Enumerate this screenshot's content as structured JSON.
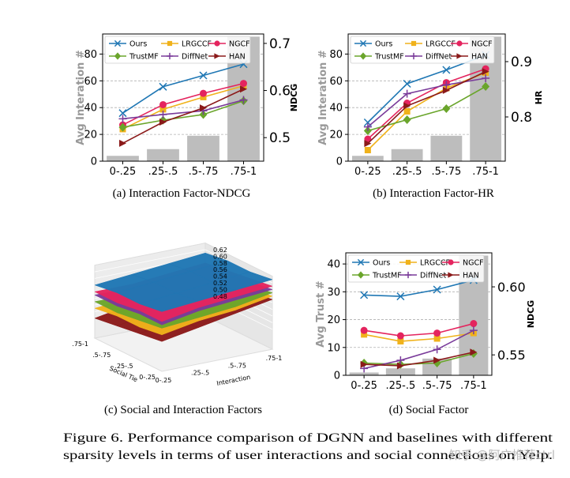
{
  "colors": {
    "Ours": "#1f77b4",
    "LRGCCF": "#f0b21b",
    "NGCF": "#e4245e",
    "TrustMF": "#6aa52b",
    "DiffNet": "#7a3b9a",
    "HAN": "#8b1a1a",
    "bar": "#bdbdbd"
  },
  "markers": {
    "Ours": "x",
    "LRGCCF": "s",
    "NGCF": "o",
    "TrustMF": "d",
    "DiffNet": "+",
    "HAN": ">"
  },
  "legend_order": [
    "Ours",
    "LRGCCF",
    "NGCF",
    "TrustMF",
    "DiffNet",
    "HAN"
  ],
  "chart_data": [
    {
      "id": "a",
      "type": "bar+line",
      "caption": "(a)  Interaction Factor-NDCG",
      "categories": [
        "0-.25",
        ".25-.5",
        ".5-.75",
        ".75-1"
      ],
      "bar_values": [
        4,
        9,
        19,
        93
      ],
      "ylabel_left": "Avg Interation #",
      "ylim_left": [
        0,
        95
      ],
      "yticks_left": [
        "0",
        "20",
        "40",
        "60",
        "80"
      ],
      "yticks_left_values": [
        0,
        20,
        40,
        60,
        80
      ],
      "ylabel_right": "NDCG",
      "ylim_right": [
        0.45,
        0.72
      ],
      "yticks_right": [
        "0.5",
        "0.6",
        "0.7"
      ],
      "yticks_right_values": [
        0.5,
        0.6,
        0.7
      ],
      "series": [
        {
          "name": "Ours",
          "values": [
            0.552,
            0.608,
            0.632,
            0.656
          ]
        },
        {
          "name": "LRGCCF",
          "values": [
            0.518,
            0.56,
            0.586,
            0.61
          ]
        },
        {
          "name": "NGCF",
          "values": [
            0.527,
            0.57,
            0.594,
            0.615
          ]
        },
        {
          "name": "TrustMF",
          "values": [
            0.522,
            0.537,
            0.549,
            0.578
          ]
        },
        {
          "name": "DiffNet",
          "values": [
            0.54,
            0.549,
            0.557,
            0.58
          ]
        },
        {
          "name": "HAN",
          "values": [
            0.488,
            0.533,
            0.563,
            0.603
          ]
        }
      ]
    },
    {
      "id": "b",
      "type": "bar+line",
      "caption": "(b)  Interaction Factor-HR",
      "categories": [
        "0-.25",
        ".25-.5",
        ".5-.75",
        ".75-1"
      ],
      "bar_values": [
        4,
        9,
        19,
        93
      ],
      "ylabel_left": "Avg Interation #",
      "ylim_left": [
        0,
        95
      ],
      "yticks_left": [
        "0",
        "20",
        "40",
        "60",
        "80"
      ],
      "yticks_left_values": [
        0,
        20,
        40,
        60,
        80
      ],
      "ylabel_right": "HR",
      "ylim_right": [
        0.72,
        0.95
      ],
      "yticks_right": [
        "0.8",
        "0.9"
      ],
      "yticks_right_values": [
        0.8,
        0.9
      ],
      "series": [
        {
          "name": "Ours",
          "values": [
            0.79,
            0.86,
            0.885,
            0.912
          ]
        },
        {
          "name": "LRGCCF",
          "values": [
            0.74,
            0.81,
            0.852,
            0.88
          ]
        },
        {
          "name": "NGCF",
          "values": [
            0.76,
            0.825,
            0.862,
            0.887
          ]
        },
        {
          "name": "TrustMF",
          "values": [
            0.775,
            0.795,
            0.815,
            0.855
          ]
        },
        {
          "name": "DiffNet",
          "values": [
            0.782,
            0.842,
            0.858,
            0.87
          ]
        },
        {
          "name": "HAN",
          "values": [
            0.752,
            0.82,
            0.848,
            0.882
          ]
        }
      ]
    },
    {
      "id": "c",
      "type": "surface3d",
      "caption": "(c)  Social and Interaction Factors",
      "xlabel": "Social Tie",
      "ylabel": "Interaction",
      "x_ticks": [
        "0-.25",
        ".25-.5",
        ".5-.75",
        ".75-1"
      ],
      "y_ticks": [
        "0-.25",
        ".25-.5",
        ".5-.75",
        ".75-1"
      ],
      "zlim": [
        0.47,
        0.63
      ],
      "z_ticks": [
        "0.62",
        "0.60",
        "0.58",
        "0.56",
        "0.54",
        "0.52",
        "0.50",
        "0.48"
      ],
      "z_tick_values": [
        0.62,
        0.6,
        0.58,
        0.56,
        0.54,
        0.52,
        0.5,
        0.48
      ],
      "surfaces": [
        {
          "name": "HAN",
          "z": [
            [
              0.48,
              0.5,
              0.52,
              0.54
            ],
            [
              0.49,
              0.51,
              0.53,
              0.55
            ],
            [
              0.5,
              0.52,
              0.54,
              0.56
            ],
            [
              0.51,
              0.53,
              0.55,
              0.57
            ]
          ]
        },
        {
          "name": "LRGCCF",
          "z": [
            [
              0.51,
              0.52,
              0.53,
              0.55
            ],
            [
              0.52,
              0.53,
              0.54,
              0.56
            ],
            [
              0.52,
              0.54,
              0.55,
              0.57
            ],
            [
              0.53,
              0.55,
              0.56,
              0.58
            ]
          ]
        },
        {
          "name": "TrustMF",
          "z": [
            [
              0.53,
              0.53,
              0.55,
              0.56
            ],
            [
              0.53,
              0.54,
              0.56,
              0.57
            ],
            [
              0.54,
              0.55,
              0.57,
              0.58
            ],
            [
              0.55,
              0.56,
              0.57,
              0.59
            ]
          ]
        },
        {
          "name": "DiffNet",
          "z": [
            [
              0.55,
              0.55,
              0.56,
              0.57
            ],
            [
              0.55,
              0.56,
              0.57,
              0.58
            ],
            [
              0.56,
              0.57,
              0.58,
              0.59
            ],
            [
              0.56,
              0.58,
              0.59,
              0.6
            ]
          ]
        },
        {
          "name": "NGCF",
          "z": [
            [
              0.56,
              0.56,
              0.57,
              0.58
            ],
            [
              0.56,
              0.57,
              0.58,
              0.59
            ],
            [
              0.57,
              0.58,
              0.59,
              0.6
            ],
            [
              0.57,
              0.59,
              0.6,
              0.61
            ]
          ]
        },
        {
          "name": "Ours",
          "z": [
            [
              0.58,
              0.59,
              0.6,
              0.61
            ],
            [
              0.59,
              0.6,
              0.61,
              0.62
            ],
            [
              0.59,
              0.6,
              0.61,
              0.62
            ],
            [
              0.6,
              0.61,
              0.62,
              0.63
            ]
          ]
        }
      ]
    },
    {
      "id": "d",
      "type": "bar+line",
      "caption": "(d)  Social Factor",
      "categories": [
        "0-.25",
        ".25-.5",
        ".5-.75",
        ".75-1"
      ],
      "bar_values": [
        1,
        2.5,
        6,
        43
      ],
      "ylabel_left": "Avg Trust #",
      "ylim_left": [
        0,
        44
      ],
      "yticks_left": [
        "0",
        "10",
        "20",
        "30",
        "40"
      ],
      "yticks_left_values": [
        0,
        10,
        20,
        30,
        40
      ],
      "ylabel_right": "NDCG",
      "ylim_right": [
        0.535,
        0.625
      ],
      "yticks_right": [
        "0.55",
        "0.60"
      ],
      "yticks_right_values": [
        0.55,
        0.6
      ],
      "series": [
        {
          "name": "Ours",
          "values": [
            0.594,
            0.593,
            0.598,
            0.605
          ]
        },
        {
          "name": "LRGCCF",
          "values": [
            0.565,
            0.56,
            0.562,
            0.566
          ]
        },
        {
          "name": "NGCF",
          "values": [
            0.568,
            0.564,
            0.566,
            0.573
          ]
        },
        {
          "name": "TrustMF",
          "values": [
            0.544,
            0.543,
            0.544,
            0.551
          ]
        },
        {
          "name": "DiffNet",
          "values": [
            0.54,
            0.546,
            0.554,
            0.568
          ]
        },
        {
          "name": "HAN",
          "values": [
            0.543,
            0.542,
            0.546,
            0.552
          ]
        }
      ]
    }
  ],
  "figure_caption": {
    "line1": "Figure 6.   Performance comparison of DGNN and baselines with different",
    "line2": "sparsity levels in terms of user interactions and social connections on Yelp."
  },
  "watermark": "知乎 @阿广推荐ctrl"
}
